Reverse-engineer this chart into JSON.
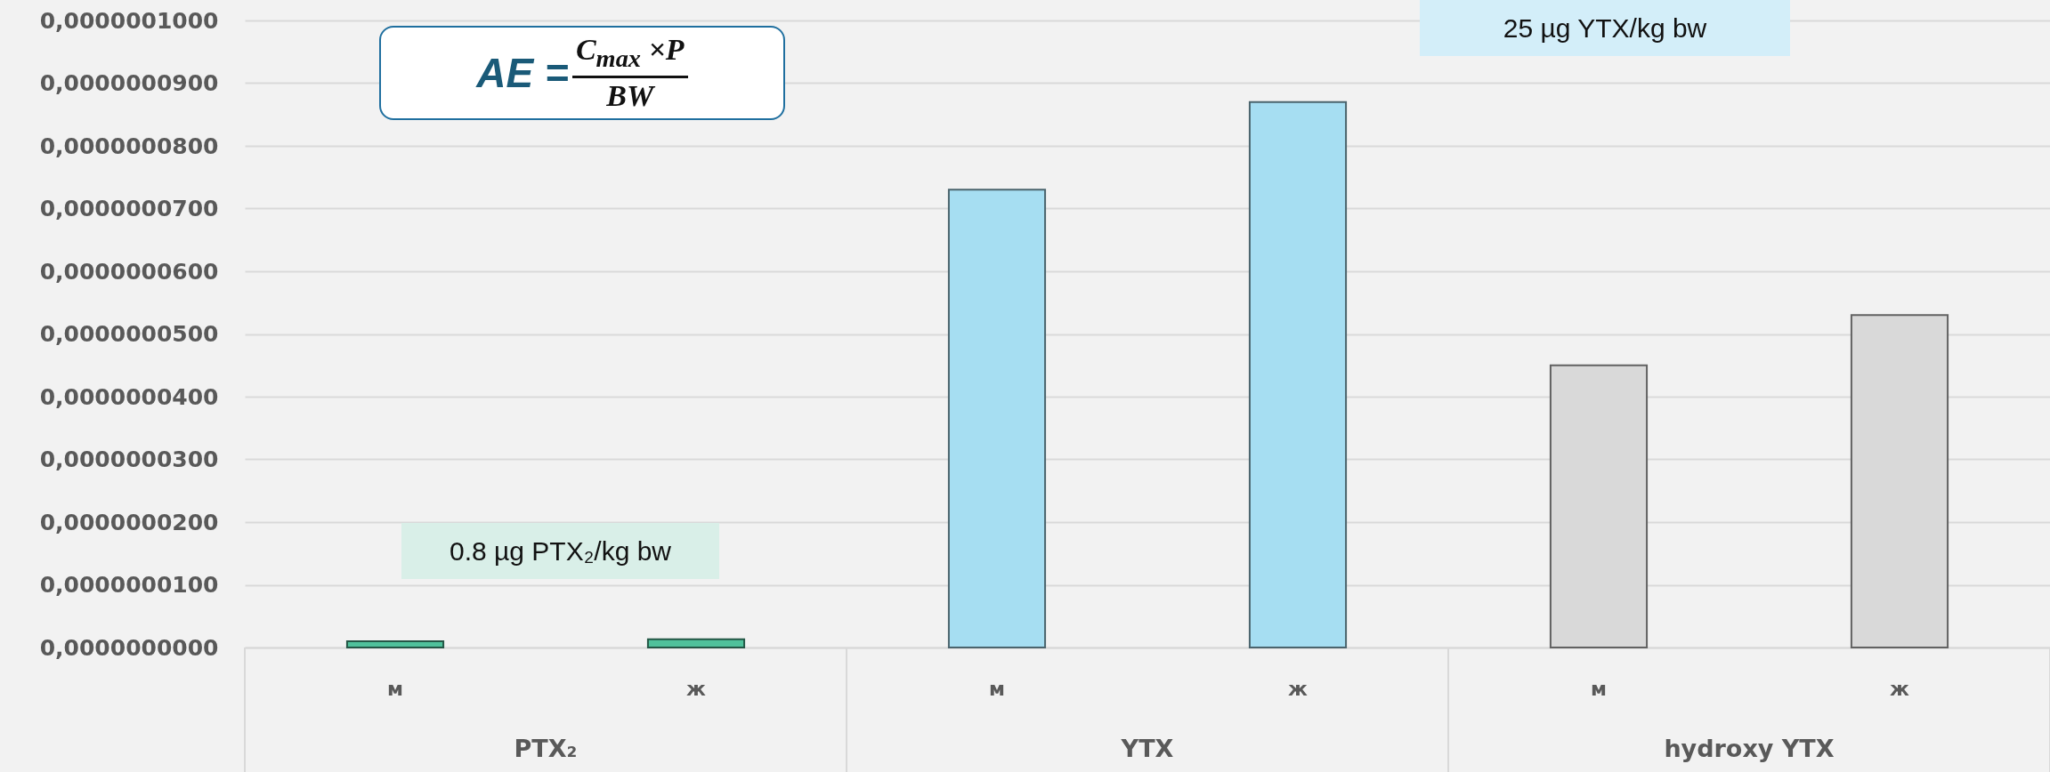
{
  "chart_data": {
    "type": "bar",
    "categories": [
      "м",
      "ж",
      "м",
      "ж",
      "м",
      "ж"
    ],
    "values": [
      1e-09,
      1.3e-09,
      7.3e-08,
      8.7e-08,
      4.5e-08,
      5.3e-08
    ],
    "colors": [
      "#4fc19b",
      "#4fc19b",
      "#a6def2",
      "#a6def2",
      "#d9d9d9",
      "#d9d9d9"
    ],
    "ylim": [
      0,
      1e-07
    ],
    "yticks": [
      {
        "value": 0,
        "label": "0,0000000000"
      },
      {
        "value": 1e-08,
        "label": "0,0000000100"
      },
      {
        "value": 2e-08,
        "label": "0,0000000200"
      },
      {
        "value": 3e-08,
        "label": "0,0000000300"
      },
      {
        "value": 4e-08,
        "label": "0,0000000400"
      },
      {
        "value": 5e-08,
        "label": "0,0000000500"
      },
      {
        "value": 6e-08,
        "label": "0,0000000600"
      },
      {
        "value": 7e-08,
        "label": "0,0000000700"
      },
      {
        "value": 8e-08,
        "label": "0,0000000800"
      },
      {
        "value": 9e-08,
        "label": "0,0000000900"
      },
      {
        "value": 1e-07,
        "label": "0,0000001000"
      }
    ],
    "grid": "y",
    "annotations": [
      "AE =",
      "C$_{max}$ ×P",
      "BW",
      "0.8 µg PTX₂/kg bw",
      "25 µg YTX/kg bw",
      "PTX₂",
      "YTX",
      "hydroxy YTX"
    ]
  }
}
